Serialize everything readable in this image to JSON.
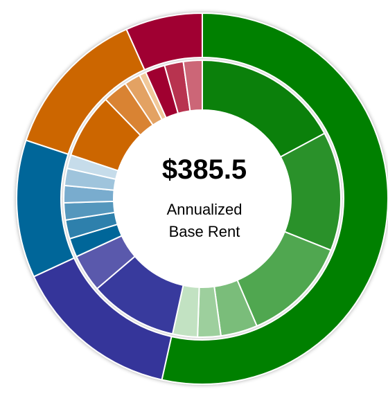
{
  "chart_data": {
    "type": "pie",
    "annotations": [
      "$385.5",
      "Annualized",
      "Base Rent"
    ],
    "series": [
      {
        "values": [
          53.5,
          14.6,
          12.0,
          13.2,
          6.7
        ],
        "colors": [
          "#008000",
          "#35349a",
          "#006699",
          "#cc6600",
          "#a00030"
        ]
      },
      {
        "values": [
          17.2,
          13.9,
          12.5,
          4.3,
          2.7,
          2.9,
          10.3,
          4.4,
          2.2,
          2.2,
          2.0,
          2.0,
          2.0,
          1.6,
          7.6,
          2.9,
          1.9,
          0.8,
          2.3,
          2.2,
          2.2
        ],
        "colors": [
          "#0b800b",
          "#2a912a",
          "#50a750",
          "#7abd7a",
          "#9dcf9d",
          "#c2e2c2",
          "#383a9d",
          "#5a59ac",
          "#006699",
          "#2e80ac",
          "#5597bd",
          "#79acce",
          "#9fc4dc",
          "#c6dcea",
          "#cc6600",
          "#d98333",
          "#e3a263",
          "#f0c899",
          "#a00030",
          "#b8334f",
          "#cc6677"
        ]
      }
    ]
  }
}
